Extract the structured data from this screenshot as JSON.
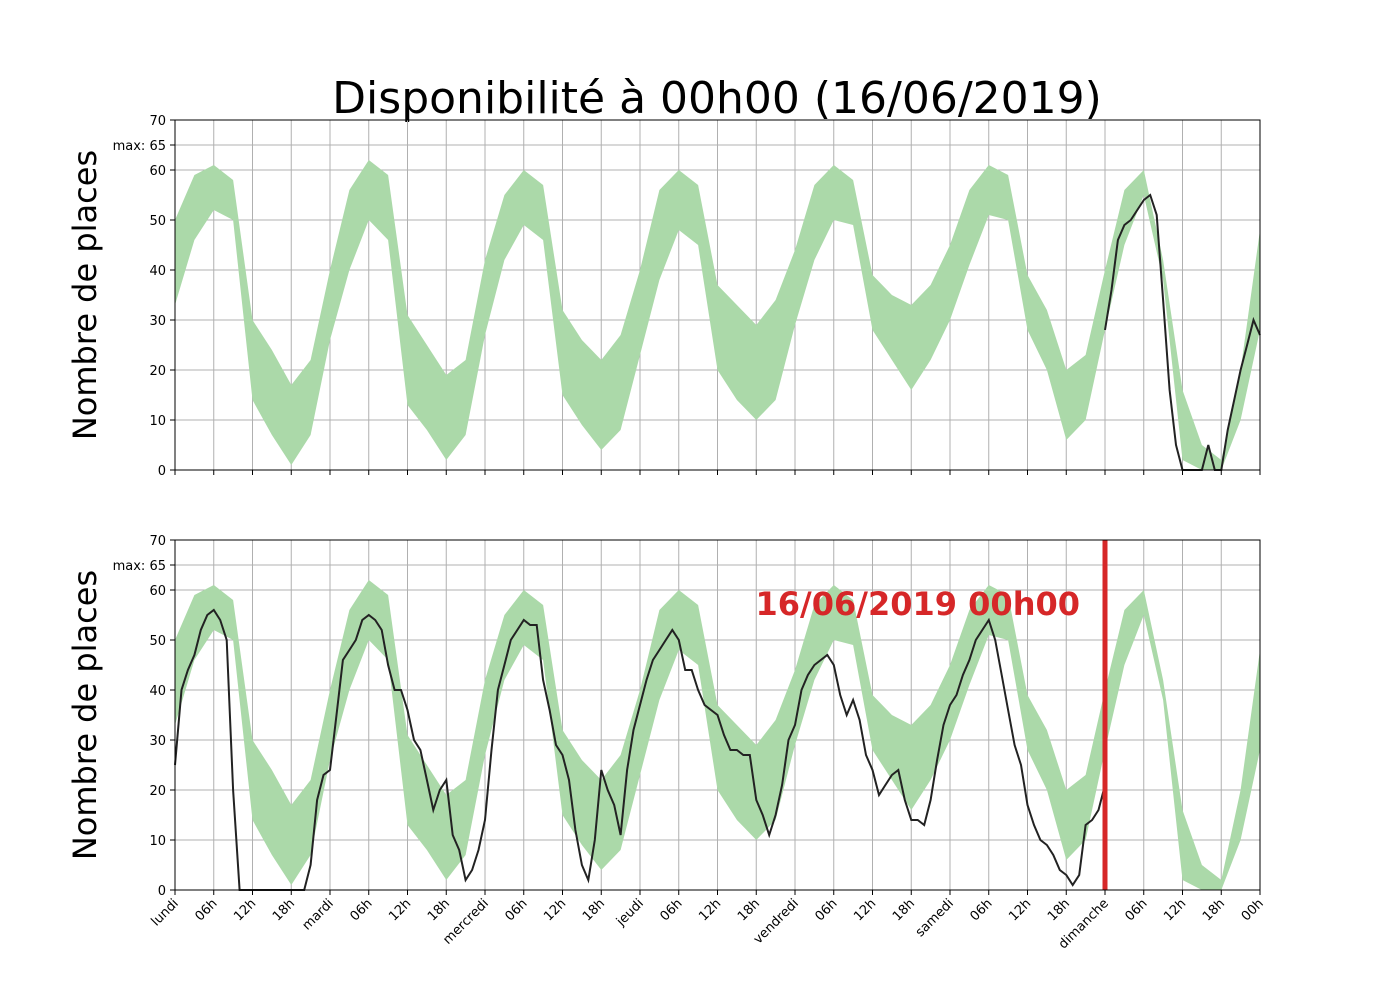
{
  "chart_data": {
    "type": "area",
    "title": "Disponibilité à 00h00 (16/06/2019)",
    "x_unit": "hours since monday 00h",
    "xlim": [
      0,
      168
    ],
    "x_ticks": [
      {
        "x": 0,
        "label": "lundi"
      },
      {
        "x": 6,
        "label": "06h"
      },
      {
        "x": 12,
        "label": "12h"
      },
      {
        "x": 18,
        "label": "18h"
      },
      {
        "x": 24,
        "label": "mardi"
      },
      {
        "x": 30,
        "label": "06h"
      },
      {
        "x": 36,
        "label": "12h"
      },
      {
        "x": 42,
        "label": "18h"
      },
      {
        "x": 48,
        "label": "mercredi"
      },
      {
        "x": 54,
        "label": "06h"
      },
      {
        "x": 60,
        "label": "12h"
      },
      {
        "x": 66,
        "label": "18h"
      },
      {
        "x": 72,
        "label": "jeudi"
      },
      {
        "x": 78,
        "label": "06h"
      },
      {
        "x": 84,
        "label": "12h"
      },
      {
        "x": 90,
        "label": "18h"
      },
      {
        "x": 96,
        "label": "vendredi"
      },
      {
        "x": 102,
        "label": "06h"
      },
      {
        "x": 108,
        "label": "12h"
      },
      {
        "x": 114,
        "label": "18h"
      },
      {
        "x": 120,
        "label": "samedi"
      },
      {
        "x": 126,
        "label": "06h"
      },
      {
        "x": 132,
        "label": "12h"
      },
      {
        "x": 138,
        "label": "18h"
      },
      {
        "x": 144,
        "label": "dimanche"
      },
      {
        "x": 150,
        "label": "06h"
      },
      {
        "x": 156,
        "label": "12h"
      },
      {
        "x": 162,
        "label": "18h"
      },
      {
        "x": 168,
        "label": "00h"
      }
    ],
    "ylim": [
      0,
      70
    ],
    "y_ticks": [
      {
        "y": 0,
        "label": "0"
      },
      {
        "y": 10,
        "label": "10"
      },
      {
        "y": 20,
        "label": "20"
      },
      {
        "y": 30,
        "label": "30"
      },
      {
        "y": 40,
        "label": "40"
      },
      {
        "y": 50,
        "label": "50"
      },
      {
        "y": 60,
        "label": "60"
      },
      {
        "y": 65,
        "label": "max: 65"
      },
      {
        "y": 70,
        "label": "70"
      }
    ],
    "band_color": "#abd9a9",
    "line_color": "#222222",
    "marker_color": "#d62728",
    "band": {
      "x": [
        0,
        3,
        6,
        9,
        12,
        15,
        18,
        21,
        24,
        27,
        30,
        33,
        36,
        39,
        42,
        45,
        48,
        51,
        54,
        57,
        60,
        63,
        66,
        69,
        72,
        75,
        78,
        81,
        84,
        87,
        90,
        93,
        96,
        99,
        102,
        105,
        108,
        111,
        114,
        117,
        120,
        123,
        126,
        129,
        132,
        135,
        138,
        141,
        144,
        147,
        150,
        153,
        156,
        159,
        162,
        165,
        168
      ],
      "lower": [
        33,
        46,
        52,
        50,
        14,
        7,
        1,
        7,
        26,
        40,
        50,
        46,
        13,
        8,
        2,
        7,
        27,
        42,
        49,
        46,
        15,
        9,
        4,
        8,
        23,
        38,
        48,
        45,
        20,
        14,
        10,
        14,
        29,
        42,
        50,
        49,
        28,
        22,
        16,
        22,
        30,
        41,
        51,
        50,
        28,
        20,
        6,
        10,
        28,
        45,
        55,
        38,
        2,
        0,
        0,
        10,
        28
      ],
      "upper": [
        50,
        59,
        61,
        58,
        30,
        24,
        17,
        22,
        40,
        56,
        62,
        59,
        31,
        25,
        19,
        22,
        42,
        55,
        60,
        57,
        32,
        26,
        22,
        27,
        40,
        56,
        60,
        57,
        37,
        33,
        29,
        34,
        44,
        57,
        61,
        58,
        39,
        35,
        33,
        37,
        45,
        56,
        61,
        59,
        39,
        32,
        20,
        23,
        40,
        56,
        60,
        42,
        16,
        5,
        2,
        20,
        48
      ]
    },
    "series": [
      {
        "panel": 1,
        "x": [
          144,
          145,
          146,
          147,
          148,
          149,
          150,
          151,
          152,
          153,
          154,
          155,
          156,
          156.5,
          157,
          158,
          159,
          160,
          161,
          162,
          163,
          164,
          165,
          166,
          167,
          168
        ],
        "y": [
          28,
          36,
          46,
          49,
          50,
          52,
          54,
          55,
          51,
          34,
          16,
          5,
          0,
          0,
          0,
          0,
          0,
          5,
          0,
          0,
          8,
          14,
          20,
          25,
          30,
          27
        ]
      },
      {
        "panel": 2,
        "x": [
          0,
          1,
          2,
          3,
          4,
          5,
          6,
          7,
          8,
          9,
          10,
          11,
          12,
          14,
          16,
          18,
          20,
          21,
          22,
          23,
          24,
          25,
          26,
          27,
          28,
          29,
          30,
          31,
          32,
          33,
          34,
          35,
          36,
          37,
          38,
          39,
          40,
          41,
          42,
          43,
          44,
          45,
          46,
          47,
          48,
          49,
          50,
          51,
          52,
          53,
          54,
          55,
          56,
          57,
          58,
          59,
          60,
          61,
          62,
          63,
          64,
          65,
          66,
          67,
          68,
          69,
          70,
          71,
          72,
          73,
          74,
          75,
          76,
          77,
          78,
          79,
          80,
          81,
          82,
          83,
          84,
          85,
          86,
          87,
          88,
          89,
          90,
          91,
          92,
          93,
          94,
          95,
          96,
          97,
          98,
          99,
          100,
          101,
          102,
          103,
          104,
          105,
          106,
          107,
          108,
          109,
          110,
          111,
          112,
          113,
          114,
          115,
          116,
          117,
          118,
          119,
          120,
          121,
          122,
          123,
          124,
          125,
          126,
          127,
          128,
          129,
          130,
          131,
          132,
          133,
          134,
          135,
          136,
          137,
          138,
          139,
          140,
          141,
          142,
          143,
          144
        ],
        "y": [
          25,
          40,
          44,
          47,
          52,
          55,
          56,
          54,
          50,
          20,
          0,
          0,
          0,
          0,
          0,
          0,
          0,
          5,
          18,
          23,
          24,
          35,
          46,
          48,
          50,
          54,
          55,
          54,
          52,
          45,
          40,
          40,
          36,
          30,
          28,
          22,
          16,
          20,
          22,
          11,
          8,
          2,
          4,
          8,
          14,
          28,
          40,
          45,
          50,
          52,
          54,
          53,
          53,
          42,
          36,
          29,
          27,
          22,
          12,
          5,
          2,
          10,
          24,
          20,
          17,
          11,
          24,
          32,
          37,
          42,
          46,
          48,
          50,
          52,
          50,
          44,
          44,
          40,
          37,
          36,
          35,
          31,
          28,
          28,
          27,
          27,
          18,
          15,
          11,
          15,
          21,
          30,
          33,
          40,
          43,
          45,
          46,
          47,
          45,
          39,
          35,
          38,
          34,
          27,
          24,
          19,
          21,
          23,
          24,
          18,
          14,
          14,
          13,
          18,
          26,
          33,
          37,
          39,
          43,
          46,
          50,
          52,
          54,
          50,
          43,
          36,
          29,
          25,
          17,
          13,
          10,
          9,
          7,
          4,
          3,
          1,
          3,
          13,
          14,
          16,
          21
        ]
      }
    ],
    "panels": [
      {
        "ylabel": "Nombre de places",
        "marker": null
      },
      {
        "ylabel": "Nombre de places",
        "marker": {
          "x": 144,
          "label": "16/06/2019 00h00"
        }
      }
    ],
    "grid": true,
    "legend": "none"
  }
}
